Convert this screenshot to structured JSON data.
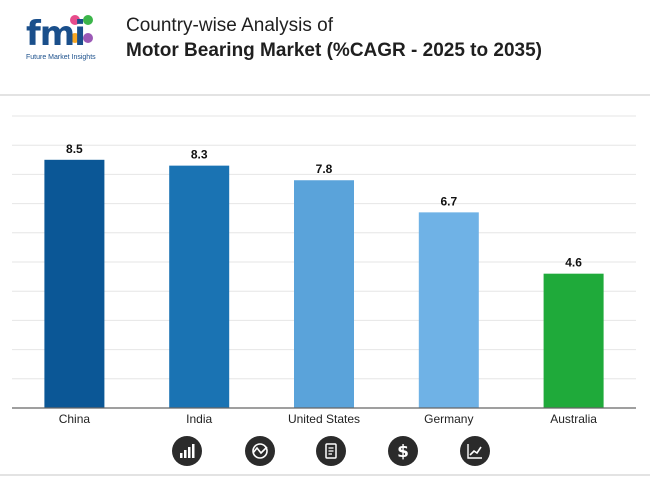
{
  "brand": {
    "logo_text": "fmi",
    "tagline": "Future Market Insights",
    "dot_colors": [
      "#e74c8b",
      "#3bb54a",
      "#f6a623",
      "#9b59b6"
    ]
  },
  "header": {
    "title_line1": "Country-wise Analysis of",
    "title_line2_bold": "Motor Bearing Market",
    "title_line2_rest": " (%CAGR - 2025 to 2035)"
  },
  "chart_data": {
    "type": "bar",
    "title": "Country-wise Analysis of Motor Bearing Market (%CAGR - 2025 to 2035)",
    "categories": [
      "China",
      "India",
      "United States",
      "Germany",
      "Australia"
    ],
    "values": [
      8.5,
      8.3,
      7.8,
      6.7,
      4.6
    ],
    "value_labels": [
      "8.5",
      "8.3",
      "7.8",
      "6.7",
      "4.6"
    ],
    "colors": [
      "#0b5796",
      "#1a73b3",
      "#5aa3da",
      "#6fb2e6",
      "#1faa3a"
    ],
    "ylim": [
      0,
      10
    ],
    "grid": true,
    "xlabel": "",
    "ylabel": ""
  },
  "footer_icons": [
    "bar-chart-icon",
    "market-trend-icon",
    "report-document-icon",
    "dollar-icon",
    "growth-chart-icon"
  ]
}
